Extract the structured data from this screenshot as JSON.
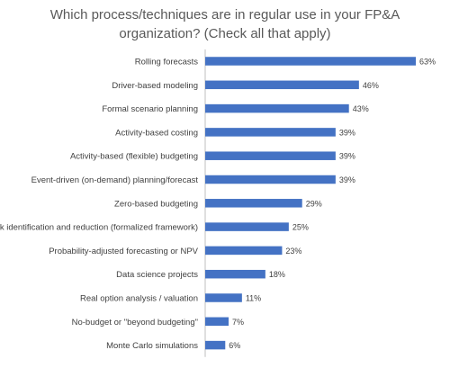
{
  "chart_data": {
    "type": "bar",
    "orientation": "horizontal",
    "title_lines": [
      "Which process/techniques are in regular use in your FP&A",
      "organization? (Check all that apply)"
    ],
    "categories": [
      "Rolling forecasts",
      "Driver-based modeling",
      "Formal scenario planning",
      "Activity-based costing",
      "Activity-based (flexible) budgeting",
      "Event-driven (on-demand) planning/forecast",
      "Zero-based budgeting",
      "Risk identification and reduction (formalized framework)",
      "Probability-adjusted forecasting or NPV",
      "Data science projects",
      "Real option analysis / valuation",
      "No-budget or \"beyond budgeting\"",
      "Monte Carlo simulations"
    ],
    "values": [
      63,
      46,
      43,
      39,
      39,
      39,
      29,
      25,
      23,
      18,
      11,
      7,
      6
    ],
    "value_labels": [
      "63%",
      "46%",
      "43%",
      "39%",
      "39%",
      "39%",
      "29%",
      "25%",
      "23%",
      "18%",
      "11%",
      "7%",
      "6%"
    ],
    "value_unit": "%",
    "xlim": [
      0,
      63
    ],
    "bar_color": "#4472C4",
    "grid": false,
    "legend": "none"
  }
}
